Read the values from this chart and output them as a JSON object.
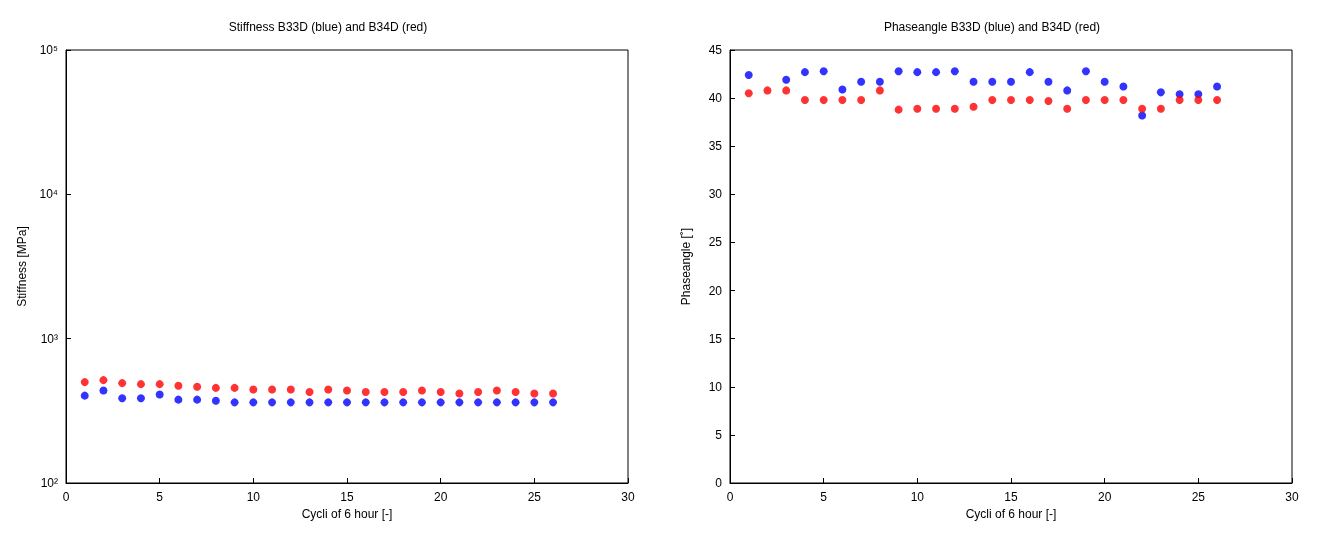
{
  "chart_data": [
    {
      "type": "scatter",
      "title": "Stiffness B33D (blue) and B34D (red)",
      "xlabel": "Cycli of 6 hour [-]",
      "ylabel": "Stiffness [MPa]",
      "log": "y",
      "marker": "circle",
      "x": [
        1,
        2,
        3,
        4,
        5,
        6,
        7,
        8,
        9,
        10,
        11,
        12,
        13,
        14,
        15,
        16,
        17,
        18,
        19,
        20,
        21,
        22,
        23,
        24,
        25,
        26
      ],
      "xlim": [
        0,
        30
      ],
      "xticks": [
        0,
        5,
        10,
        15,
        20,
        25,
        30
      ],
      "ylim": [
        100,
        100000
      ],
      "yticks": [
        {
          "value": 100,
          "label": "10²"
        },
        {
          "value": 1000,
          "label": "10³"
        },
        {
          "value": 10000,
          "label": "10⁴"
        },
        {
          "value": 100000,
          "label": "10⁵"
        }
      ],
      "series": [
        {
          "color": "#0000ff",
          "values": [
            403,
            437,
            387,
            387,
            410,
            378,
            378,
            371,
            362,
            362,
            362,
            362,
            362,
            362,
            362,
            362,
            362,
            362,
            362,
            362,
            362,
            362,
            362,
            362,
            362,
            362
          ]
        },
        {
          "color": "#ff0000",
          "values": [
            500,
            516,
            492,
            484,
            484,
            472,
            464,
            456,
            456,
            445,
            445,
            445,
            427,
            445,
            437,
            427,
            427,
            427,
            437,
            427,
            417,
            427,
            437,
            427,
            417,
            417
          ]
        }
      ]
    },
    {
      "type": "scatter",
      "title": "Phaseangle B33D (blue) and B34D (red)",
      "xlabel": "Cycli of 6 hour [-]",
      "ylabel": "Phaseangle [˚]",
      "marker": "circle",
      "x": [
        1,
        2,
        3,
        4,
        5,
        6,
        7,
        8,
        9,
        10,
        11,
        12,
        13,
        14,
        15,
        16,
        17,
        18,
        19,
        20,
        21,
        22,
        23,
        24,
        25,
        26
      ],
      "xlim": [
        0,
        30
      ],
      "xticks": [
        0,
        5,
        10,
        15,
        20,
        25,
        30
      ],
      "ylim": [
        0,
        45
      ],
      "yticks": [
        0,
        5,
        10,
        15,
        20,
        25,
        30,
        35,
        40,
        45
      ],
      "series": [
        {
          "color": "#0000ff",
          "values": [
            42.4,
            null,
            41.9,
            42.7,
            42.8,
            40.9,
            41.7,
            41.7,
            42.8,
            42.7,
            42.7,
            42.8,
            41.7,
            41.7,
            41.7,
            42.7,
            41.7,
            40.8,
            42.8,
            41.7,
            41.2,
            38.2,
            40.6,
            40.4,
            40.4,
            41.2
          ]
        },
        {
          "color": "#ff0000",
          "values": [
            40.5,
            40.8,
            40.8,
            39.8,
            39.8,
            39.8,
            39.8,
            40.8,
            38.8,
            38.9,
            38.9,
            38.9,
            39.1,
            39.8,
            39.8,
            39.8,
            39.7,
            38.9,
            39.8,
            39.8,
            39.8,
            38.9,
            38.9,
            39.8,
            39.8,
            39.8
          ]
        }
      ]
    }
  ]
}
